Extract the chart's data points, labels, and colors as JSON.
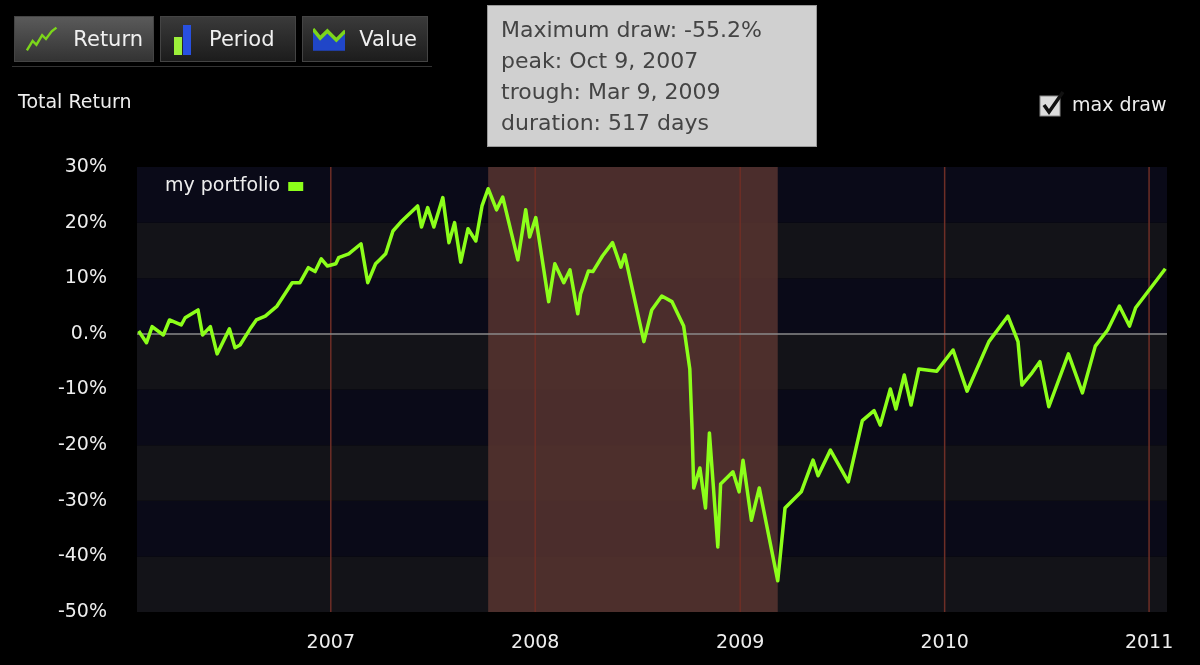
{
  "chart_data": {
    "type": "line",
    "ylabel": "Total Return",
    "annotations": [
      "Return",
      "Period",
      "Value",
      "max draw",
      "Maximum draw: -55.2%",
      "peak: Oct 9, 2007",
      "trough: Mar 9, 2009",
      "duration: 517 days"
    ],
    "x": [
      "2006-01-23",
      "2006-02-06",
      "2006-02-16",
      "2006-03-08",
      "2006-03-19",
      "2006-04-09",
      "2006-04-16",
      "2006-05-09",
      "2006-05-17",
      "2006-05-31",
      "2006-06-12",
      "2006-07-04",
      "2006-07-14",
      "2006-07-23",
      "2006-08-10",
      "2006-08-21",
      "2006-09-06",
      "2006-09-27",
      "2006-10-24",
      "2006-11-07",
      "2006-11-22",
      "2006-12-04",
      "2006-12-15",
      "2006-12-26",
      "2007-01-10",
      "2007-01-15",
      "2007-02-02",
      "2007-02-24",
      "2007-03-08",
      "2007-03-22",
      "2007-03-29",
      "2007-04-09",
      "2007-04-22",
      "2007-05-06",
      "2007-06-05",
      "2007-06-12",
      "2007-06-23",
      "2007-07-04",
      "2007-07-20",
      "2007-07-31",
      "2007-08-10",
      "2007-08-21",
      "2007-09-03",
      "2007-09-17",
      "2007-09-28",
      "2007-10-09",
      "2007-10-24",
      "2007-11-04",
      "2007-12-01",
      "2007-12-15",
      "2007-12-22",
      "2008-01-02",
      "2008-01-25",
      "2008-02-05",
      "2008-02-21",
      "2008-03-03",
      "2008-03-17",
      "2008-03-22",
      "2008-04-05",
      "2008-04-13",
      "2008-04-30",
      "2008-05-18",
      "2008-06-02",
      "2008-06-09",
      "2008-07-13",
      "2008-07-27",
      "2008-08-14",
      "2008-09-01",
      "2008-09-22",
      "2008-10-03",
      "2008-10-07",
      "2008-10-10",
      "2008-10-21",
      "2008-10-31",
      "2008-11-07",
      "2008-11-22",
      "2008-11-27",
      "2008-12-19",
      "2008-12-30",
      "2009-01-06",
      "2009-01-21",
      "2009-02-04",
      "2009-03-09",
      "2009-03-22",
      "2009-04-20",
      "2009-05-11",
      "2009-05-20",
      "2009-06-11",
      "2009-07-13",
      "2009-08-07",
      "2009-08-28",
      "2009-09-08",
      "2009-09-26",
      "2009-10-06",
      "2009-10-21",
      "2009-11-02",
      "2009-11-16",
      "2009-12-18",
      "2010-01-16",
      "2010-02-10",
      "2010-03-21",
      "2010-04-24",
      "2010-05-12",
      "2010-05-19",
      "2010-06-06",
      "2010-06-20",
      "2010-07-06",
      "2010-08-10",
      "2010-09-04",
      "2010-09-27",
      "2010-10-19",
      "2010-11-09",
      "2010-11-27",
      "2010-12-08",
      "2011-01-30"
    ],
    "series": [
      {
        "name": "my portfolio",
        "color": "#8cff1a",
        "values": [
          0.5,
          -1.6,
          1.3,
          -0.2,
          2.5,
          1.6,
          2.9,
          4.3,
          -0.2,
          1.3,
          -3.6,
          0.9,
          -2.5,
          -2.0,
          0.9,
          2.5,
          3.2,
          5.0,
          9.2,
          9.2,
          11.9,
          11.2,
          13.5,
          12.2,
          12.6,
          13.7,
          14.4,
          16.2,
          9.2,
          12.6,
          13.3,
          14.4,
          18.5,
          20.1,
          23.0,
          19.2,
          22.7,
          19.2,
          24.5,
          16.4,
          20.0,
          12.9,
          18.9,
          16.7,
          23.0,
          26.1,
          22.3,
          24.6,
          13.3,
          22.3,
          17.4,
          20.9,
          5.8,
          12.6,
          9.2,
          11.5,
          3.6,
          7.2,
          11.3,
          11.2,
          14.0,
          16.4,
          12.0,
          14.2,
          -1.4,
          4.3,
          6.8,
          5.8,
          1.4,
          -6.3,
          -17.1,
          -27.7,
          -24.1,
          -31.3,
          -17.8,
          -38.3,
          -27.0,
          -24.8,
          -28.4,
          -22.7,
          -33.5,
          -27.7,
          -44.4,
          -31.3,
          -28.4,
          -22.7,
          -25.5,
          -20.9,
          -26.6,
          -15.6,
          -13.8,
          -16.4,
          -9.9,
          -13.5,
          -7.4,
          -12.8,
          -6.3,
          -6.7,
          -2.9,
          -10.3,
          -1.4,
          3.2,
          -1.4,
          -9.2,
          -7.0,
          -5.0,
          -13.1,
          -3.6,
          -10.6,
          -2.2,
          0.7,
          5.0,
          1.4,
          4.7,
          11.7
        ]
      }
    ],
    "xlim": [
      "2006-01-20",
      "2011-02-02"
    ],
    "xticks": [
      {
        "value": "2007-01-01",
        "label": "2007"
      },
      {
        "value": "2008-01-01",
        "label": "2008"
      },
      {
        "value": "2009-01-01",
        "label": "2009"
      },
      {
        "value": "2010-01-01",
        "label": "2010"
      },
      {
        "value": "2011-01-01",
        "label": "2011"
      }
    ],
    "ylim": [
      -50,
      30
    ],
    "yticks": [
      {
        "value": -50,
        "label": "-50%"
      },
      {
        "value": -40,
        "label": "-40%"
      },
      {
        "value": -30,
        "label": "-30%"
      },
      {
        "value": -20,
        "label": "-20%"
      },
      {
        "value": -10,
        "label": "-10%"
      },
      {
        "value": 0,
        "label": "0.%"
      },
      {
        "value": 10,
        "label": "10%"
      },
      {
        "value": 20,
        "label": "20%"
      },
      {
        "value": 30,
        "label": "30%"
      }
    ],
    "grid": "x",
    "legend": "top left",
    "ref_lines": [
      {
        "axis": "y",
        "value": 0,
        "color": "#8a8a8a"
      }
    ],
    "bands": [
      {
        "axis": "x",
        "from": "2007-10-09",
        "to": "2009-03-09",
        "color": "#5a3631"
      }
    ]
  }
}
